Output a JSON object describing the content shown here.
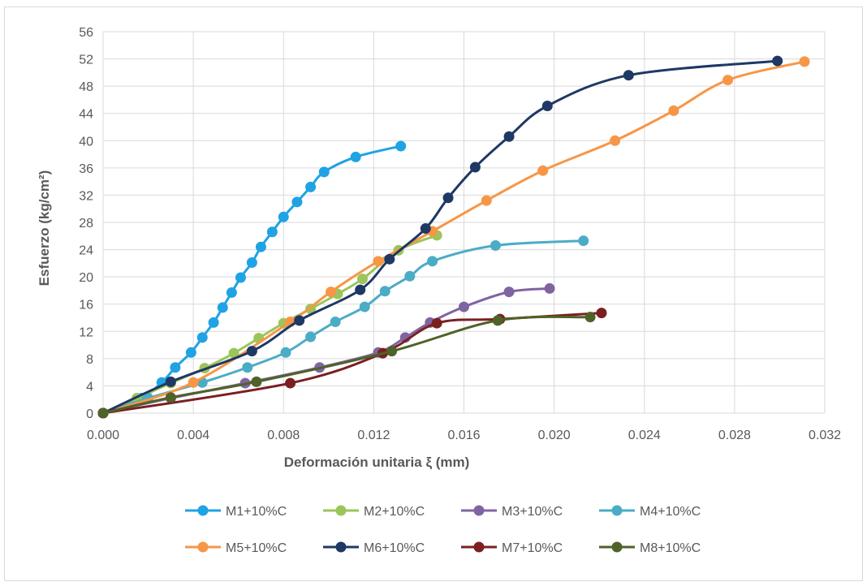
{
  "chart_data": {
    "type": "line",
    "title": "",
    "xlabel": "Deformación unitaria ξ (mm)",
    "ylabel": "Esfuerzo (kg/cm²)",
    "xlim": [
      0,
      0.032
    ],
    "ylim": [
      0,
      56
    ],
    "x_ticks": [
      "0.000",
      "0.004",
      "0.008",
      "0.012",
      "0.016",
      "0.020",
      "0.024",
      "0.028",
      "0.032"
    ],
    "y_ticks": [
      "0",
      "4",
      "8",
      "12",
      "16",
      "20",
      "24",
      "28",
      "32",
      "36",
      "40",
      "44",
      "48",
      "52",
      "56"
    ],
    "grid": true,
    "legend_position": "bottom",
    "series": [
      {
        "name": "M1+10%C",
        "color": "#1fa3e4",
        "points": [
          [
            0,
            0
          ],
          [
            0.0017,
            2.2
          ],
          [
            0.0026,
            4.5
          ],
          [
            0.0032,
            6.7
          ],
          [
            0.0039,
            8.9
          ],
          [
            0.0044,
            11.1
          ],
          [
            0.0049,
            13.3
          ],
          [
            0.0053,
            15.5
          ],
          [
            0.0057,
            17.7
          ],
          [
            0.0061,
            19.9
          ],
          [
            0.0066,
            22.1
          ],
          [
            0.007,
            24.4
          ],
          [
            0.0075,
            26.6
          ],
          [
            0.008,
            28.8
          ],
          [
            0.0086,
            31.0
          ],
          [
            0.0092,
            33.2
          ],
          [
            0.0098,
            35.4
          ],
          [
            0.0112,
            37.6
          ],
          [
            0.0132,
            39.2
          ]
        ]
      },
      {
        "name": "M2+10%C",
        "color": "#9bc55a",
        "points": [
          [
            0,
            0
          ],
          [
            0.0015,
            2.2
          ],
          [
            0.003,
            4.4
          ],
          [
            0.0045,
            6.6
          ],
          [
            0.0058,
            8.8
          ],
          [
            0.0069,
            11.0
          ],
          [
            0.008,
            13.2
          ],
          [
            0.0092,
            15.3
          ],
          [
            0.0104,
            17.5
          ],
          [
            0.0115,
            19.7
          ],
          [
            0.0131,
            23.9
          ],
          [
            0.0148,
            26.1
          ]
        ]
      },
      {
        "name": "M3+10%C",
        "color": "#8064a2",
        "points": [
          [
            0,
            0
          ],
          [
            0.003,
            2.2
          ],
          [
            0.0063,
            4.4
          ],
          [
            0.0096,
            6.7
          ],
          [
            0.0122,
            8.9
          ],
          [
            0.0134,
            11.1
          ],
          [
            0.0145,
            13.3
          ],
          [
            0.016,
            15.6
          ],
          [
            0.018,
            17.8
          ],
          [
            0.0198,
            18.3
          ]
        ]
      },
      {
        "name": "M4+10%C",
        "color": "#4bacc6",
        "points": [
          [
            0,
            0
          ],
          [
            0.002,
            2.2
          ],
          [
            0.0044,
            4.5
          ],
          [
            0.0064,
            6.7
          ],
          [
            0.0081,
            8.9
          ],
          [
            0.0092,
            11.2
          ],
          [
            0.0103,
            13.4
          ],
          [
            0.0116,
            15.6
          ],
          [
            0.0125,
            17.9
          ],
          [
            0.0136,
            20.1
          ],
          [
            0.0146,
            22.3
          ],
          [
            0.0174,
            24.6
          ],
          [
            0.0213,
            25.3
          ]
        ]
      },
      {
        "name": "M5+10%C",
        "color": "#f79646",
        "points": [
          [
            0,
            0
          ],
          [
            0.004,
            4.5
          ],
          [
            0.0083,
            13.4
          ],
          [
            0.0101,
            17.8
          ],
          [
            0.0122,
            22.3
          ],
          [
            0.0146,
            26.7
          ],
          [
            0.017,
            31.2
          ],
          [
            0.0195,
            35.6
          ],
          [
            0.0227,
            40.0
          ],
          [
            0.0253,
            44.4
          ],
          [
            0.0277,
            48.9
          ],
          [
            0.0311,
            51.6
          ]
        ]
      },
      {
        "name": "M6+10%C",
        "color": "#1f3864",
        "points": [
          [
            0,
            0
          ],
          [
            0.003,
            4.6
          ],
          [
            0.0066,
            9.1
          ],
          [
            0.0087,
            13.6
          ],
          [
            0.0114,
            18.1
          ],
          [
            0.0127,
            22.6
          ],
          [
            0.0143,
            27.1
          ],
          [
            0.0153,
            31.6
          ],
          [
            0.0165,
            36.1
          ],
          [
            0.018,
            40.6
          ],
          [
            0.0197,
            45.1
          ],
          [
            0.0233,
            49.6
          ],
          [
            0.0299,
            51.7
          ]
        ]
      },
      {
        "name": "M7+10%C",
        "color": "#7b1f21",
        "points": [
          [
            0,
            0
          ],
          [
            0.0083,
            4.4
          ],
          [
            0.0124,
            8.8
          ],
          [
            0.0148,
            13.2
          ],
          [
            0.0176,
            13.8
          ],
          [
            0.0221,
            14.7
          ]
        ]
      },
      {
        "name": "M8+10%C",
        "color": "#4f6228",
        "points": [
          [
            0,
            0
          ],
          [
            0.003,
            2.3
          ],
          [
            0.0068,
            4.6
          ],
          [
            0.0128,
            9.1
          ],
          [
            0.0175,
            13.6
          ],
          [
            0.0216,
            14.1
          ]
        ]
      }
    ]
  }
}
